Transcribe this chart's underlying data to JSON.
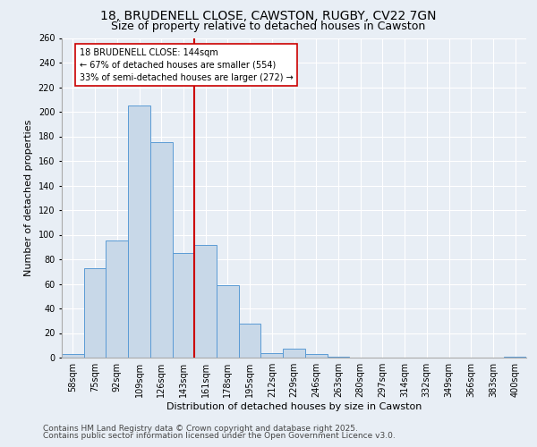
{
  "title_line1": "18, BRUDENELL CLOSE, CAWSTON, RUGBY, CV22 7GN",
  "title_line2": "Size of property relative to detached houses in Cawston",
  "xlabel": "Distribution of detached houses by size in Cawston",
  "ylabel": "Number of detached properties",
  "footer_line1": "Contains HM Land Registry data © Crown copyright and database right 2025.",
  "footer_line2": "Contains public sector information licensed under the Open Government Licence v3.0.",
  "categories": [
    "58sqm",
    "75sqm",
    "92sqm",
    "109sqm",
    "126sqm",
    "143sqm",
    "161sqm",
    "178sqm",
    "195sqm",
    "212sqm",
    "229sqm",
    "246sqm",
    "263sqm",
    "280sqm",
    "297sqm",
    "314sqm",
    "332sqm",
    "349sqm",
    "366sqm",
    "383sqm",
    "400sqm"
  ],
  "values": [
    3,
    73,
    95,
    205,
    175,
    85,
    92,
    59,
    28,
    4,
    7,
    3,
    1,
    0,
    0,
    0,
    0,
    0,
    0,
    0,
    1
  ],
  "bar_color": "#c8d8e8",
  "bar_edge_color": "#5b9bd5",
  "background_color": "#e8eef5",
  "plot_background": "#e8eef5",
  "grid_color": "#ffffff",
  "annotation_box_text_line1": "18 BRUDENELL CLOSE: 144sqm",
  "annotation_box_text_line2": "← 67% of detached houses are smaller (554)",
  "annotation_box_text_line3": "33% of semi-detached houses are larger (272) →",
  "ref_line_color": "#cc0000",
  "ylim": [
    0,
    260
  ],
  "yticks": [
    0,
    20,
    40,
    60,
    80,
    100,
    120,
    140,
    160,
    180,
    200,
    220,
    240,
    260
  ],
  "annotation_fontsize": 7.0,
  "title_fontsize1": 10,
  "title_fontsize2": 9,
  "footer_fontsize": 6.5,
  "axis_label_fontsize": 8,
  "tick_fontsize": 7
}
